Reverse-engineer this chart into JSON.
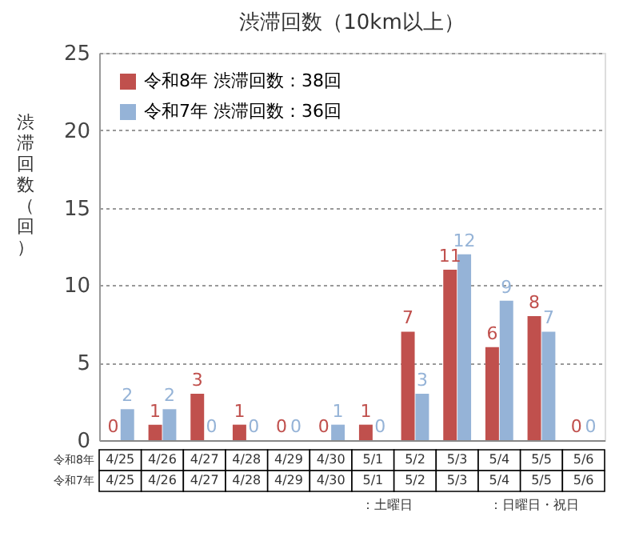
{
  "chart_data": {
    "type": "bar",
    "title": "渋滞回数（10km以上）",
    "ylabel": "渋滞回数（回）",
    "categories": [
      "4/25",
      "4/26",
      "4/27",
      "4/28",
      "4/29",
      "4/30",
      "5/1",
      "5/2",
      "5/3",
      "5/4",
      "5/5",
      "5/6"
    ],
    "series": [
      {
        "name": "令和8年 渋滞回数：38回",
        "color": "#c0504d",
        "values": [
          0,
          1,
          3,
          1,
          0,
          0,
          1,
          7,
          11,
          6,
          8,
          0
        ]
      },
      {
        "name": "令和7年 渋滞回数：36回",
        "color": "#95b3d7",
        "values": [
          2,
          2,
          0,
          0,
          0,
          1,
          0,
          3,
          12,
          9,
          7,
          0
        ]
      }
    ],
    "ylim": [
      0,
      25
    ],
    "yticks": [
      0,
      5,
      10,
      15,
      20,
      25
    ],
    "grid": "y",
    "legend": "top left",
    "data_labels": true,
    "annotations": [
      "令和8年",
      "令和7年",
      "：土曜日",
      "：日曜日・祝日"
    ]
  }
}
